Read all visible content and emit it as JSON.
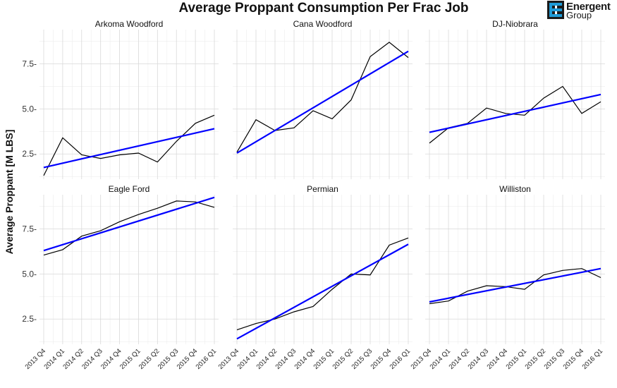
{
  "title": "Average Proppant Consumption Per Frac Job",
  "logo": {
    "brand": "Energent",
    "group": "Group"
  },
  "colors": {
    "data_line": "#000000",
    "trend_line": "#0000ff",
    "logo_accent": "#1f9bd7"
  },
  "chart_data": {
    "type": "line",
    "title": "Average Proppant Consumption Per Frac Job",
    "xlabel": "",
    "ylabel": "Average Proppant [M LBS]",
    "ylim": [
      1.1,
      9.4
    ],
    "yticks": [
      2.5,
      5.0,
      7.5
    ],
    "ytick_labels": [
      "2.5-",
      "5.0-",
      "7.5-"
    ],
    "categories": [
      "2013 Q4",
      "2014 Q1",
      "2014 Q2",
      "2014 Q3",
      "2014 Q4",
      "2015 Q1",
      "2015 Q2",
      "2015 Q3",
      "2015 Q4",
      "2016 Q1"
    ],
    "panels": [
      {
        "name": "Arkoma Woodford",
        "values": [
          1.3,
          3.4,
          2.45,
          2.25,
          2.45,
          2.55,
          2.05,
          3.2,
          4.2,
          4.65
        ],
        "trend": [
          1.75,
          3.9
        ]
      },
      {
        "name": "Cana Woodford",
        "values": [
          2.6,
          4.4,
          3.8,
          3.95,
          4.9,
          4.45,
          5.5,
          7.9,
          8.7,
          7.85
        ],
        "trend": [
          2.55,
          8.2
        ]
      },
      {
        "name": "DJ-Niobrara",
        "values": [
          3.1,
          3.95,
          4.2,
          5.05,
          4.75,
          4.65,
          5.6,
          6.25,
          4.75,
          5.4
        ],
        "trend": [
          3.7,
          5.8
        ]
      },
      {
        "name": "Eagle Ford",
        "values": [
          6.05,
          6.35,
          7.1,
          7.4,
          7.9,
          8.3,
          8.65,
          9.05,
          9.0,
          8.7
        ],
        "trend": [
          6.3,
          9.25
        ]
      },
      {
        "name": "Permian",
        "values": [
          1.9,
          2.25,
          2.5,
          2.9,
          3.2,
          4.15,
          5.0,
          4.95,
          6.6,
          7.0
        ],
        "trend": [
          1.4,
          6.65
        ]
      },
      {
        "name": "Williston",
        "values": [
          3.35,
          3.5,
          4.05,
          4.35,
          4.3,
          4.15,
          4.95,
          5.2,
          5.3,
          4.8
        ],
        "trend": [
          3.45,
          5.3
        ]
      }
    ]
  }
}
